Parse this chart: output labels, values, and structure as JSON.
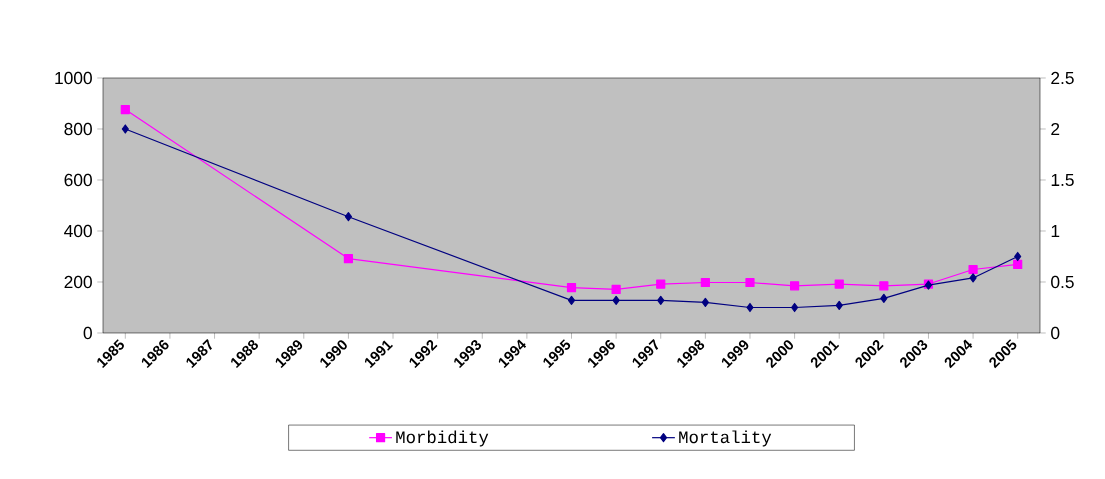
{
  "chart_data": {
    "type": "line",
    "categories": [
      "1985",
      "1986",
      "1987",
      "1988",
      "1989",
      "1990",
      "1991",
      "1992",
      "1993",
      "1994",
      "1995",
      "1996",
      "1997",
      "1998",
      "1999",
      "2000",
      "2001",
      "2002",
      "2003",
      "2004",
      "2005"
    ],
    "series": [
      {
        "name": "Morbidity",
        "color": "#ff00ff",
        "marker": "square",
        "values": [
          876,
          null,
          null,
          null,
          null,
          292,
          null,
          null,
          null,
          null,
          178,
          171,
          192,
          198,
          198,
          185,
          192,
          185,
          192,
          249,
          269
        ]
      },
      {
        "name": "Mortality",
        "color": "#000080",
        "marker": "diamond",
        "axis": "y2",
        "values": [
          2.0,
          null,
          null,
          null,
          null,
          1.14,
          null,
          null,
          null,
          null,
          0.32,
          0.32,
          0.32,
          0.3,
          0.25,
          0.25,
          0.27,
          0.34,
          0.47,
          0.54,
          0.75
        ]
      }
    ],
    "ylim": [
      0,
      1000
    ],
    "yticks": [
      0,
      200,
      400,
      600,
      800,
      1000
    ],
    "y2lim": [
      0,
      2.5
    ],
    "y2ticks": [
      0,
      0.5,
      1,
      1.5,
      2,
      2.5
    ],
    "grid": false,
    "legend": "bottom"
  }
}
